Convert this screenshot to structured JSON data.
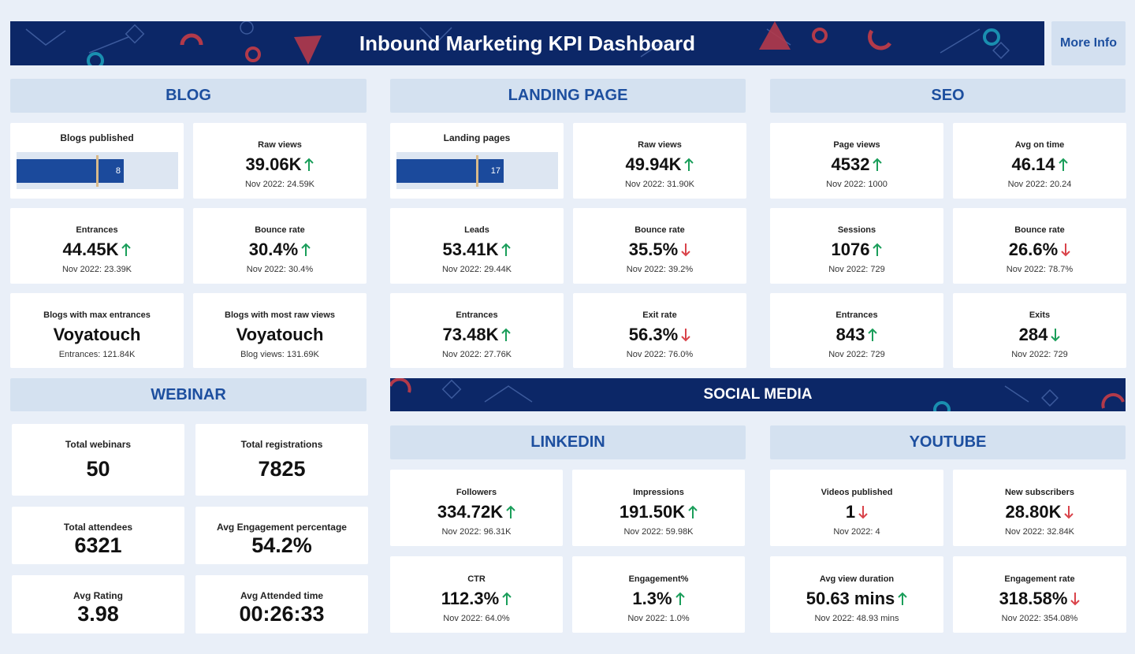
{
  "header": {
    "title": "Inbound Marketing KPI Dashboard",
    "button": "More Info"
  },
  "social_media": {
    "title": "SOCIAL MEDIA"
  },
  "arrow_colors": {
    "green": "#1a9e5a",
    "red": "#d9434a"
  },
  "sections": [
    {
      "title": "BLOG",
      "cards": [
        {
          "kind": "bullet",
          "label": "Blogs published",
          "value": "8"
        },
        {
          "kind": "kpi",
          "label": "Raw views",
          "value": "39.06K",
          "trend": "up",
          "trend_color": "green",
          "comparison": "Nov 2022: 24.59K"
        },
        {
          "kind": "kpi",
          "label": "Entrances",
          "value": "44.45K",
          "trend": "up",
          "trend_color": "green",
          "comparison": "Nov 2022: 23.39K"
        },
        {
          "kind": "kpi",
          "label": "Bounce rate",
          "value": "30.4%",
          "trend": "up",
          "trend_color": "green",
          "comparison": "Nov 2022: 30.4%"
        },
        {
          "kind": "kpi",
          "label": "Blogs with max entrances",
          "value": "Voyatouch",
          "comparison": "Entrances: 121.84K"
        },
        {
          "kind": "kpi",
          "label": "Blogs with most raw views",
          "value": "Voyatouch",
          "comparison": "Blog views: 131.69K"
        }
      ]
    },
    {
      "title": "LANDING PAGE",
      "cards": [
        {
          "kind": "bullet",
          "label": "Landing pages",
          "value": "17"
        },
        {
          "kind": "kpi",
          "label": "Raw views",
          "value": "49.94K",
          "trend": "up",
          "trend_color": "green",
          "comparison": "Nov 2022: 31.90K"
        },
        {
          "kind": "kpi",
          "label": "Leads",
          "value": "53.41K",
          "trend": "up",
          "trend_color": "green",
          "comparison": "Nov 2022: 29.44K"
        },
        {
          "kind": "kpi",
          "label": "Bounce rate",
          "value": "35.5%",
          "trend": "down",
          "trend_color": "red",
          "comparison": "Nov 2022: 39.2%"
        },
        {
          "kind": "kpi",
          "label": "Entrances",
          "value": "73.48K",
          "trend": "up",
          "trend_color": "green",
          "comparison": "Nov 2022: 27.76K"
        },
        {
          "kind": "kpi",
          "label": "Exit rate",
          "value": "56.3%",
          "trend": "down",
          "trend_color": "red",
          "comparison": "Nov 2022: 76.0%"
        }
      ]
    },
    {
      "title": "SEO",
      "cards": [
        {
          "kind": "kpi",
          "label": "Page views",
          "value": "4532",
          "trend": "up",
          "trend_color": "green",
          "comparison": "Nov 2022: 1000"
        },
        {
          "kind": "kpi",
          "label": "Avg on time",
          "value": "46.14",
          "trend": "up",
          "trend_color": "green",
          "comparison": "Nov 2022: 20.24"
        },
        {
          "kind": "kpi",
          "label": "Sessions",
          "value": "1076",
          "trend": "up",
          "trend_color": "green",
          "comparison": "Nov 2022: 729"
        },
        {
          "kind": "kpi",
          "label": "Bounce rate",
          "value": "26.6%",
          "trend": "down",
          "trend_color": "red",
          "comparison": "Nov 2022: 78.7%"
        },
        {
          "kind": "kpi",
          "label": "Entrances",
          "value": "843",
          "trend": "up",
          "trend_color": "green",
          "comparison": "Nov 2022: 729"
        },
        {
          "kind": "kpi",
          "label": "Exits",
          "value": "284",
          "trend": "down",
          "trend_color": "green",
          "comparison": "Nov 2022: 729"
        }
      ]
    },
    {
      "title": "WEBINAR",
      "cards": [
        {
          "kind": "big",
          "label": "Total webinars",
          "value": "50"
        },
        {
          "kind": "big",
          "label": "Total registrations",
          "value": "7825"
        },
        {
          "kind": "big",
          "label": "Total attendees",
          "value": "6321"
        },
        {
          "kind": "big",
          "label": "Avg Engagement percentage",
          "value": "54.2%"
        },
        {
          "kind": "big",
          "label": "Avg Rating",
          "value": "3.98"
        },
        {
          "kind": "big",
          "label": "Avg Attended time",
          "value": "00:26:33"
        }
      ]
    },
    {
      "title": "LINKEDIN",
      "cards": [
        {
          "kind": "kpi",
          "label": "Followers",
          "value": "334.72K",
          "trend": "up",
          "trend_color": "green",
          "comparison": "Nov 2022: 96.31K"
        },
        {
          "kind": "kpi",
          "label": "Impressions",
          "value": "191.50K",
          "trend": "up",
          "trend_color": "green",
          "comparison": "Nov 2022: 59.98K"
        },
        {
          "kind": "kpi",
          "label": "CTR",
          "value": "112.3%",
          "trend": "up",
          "trend_color": "green",
          "comparison": "Nov 2022: 64.0%"
        },
        {
          "kind": "kpi",
          "label": "Engagement%",
          "value": "1.3%",
          "trend": "up",
          "trend_color": "green",
          "comparison": "Nov 2022: 1.0%"
        }
      ]
    },
    {
      "title": "YOUTUBE",
      "cards": [
        {
          "kind": "kpi",
          "label": "Videos published",
          "value": "1",
          "trend": "down",
          "trend_color": "red",
          "comparison": "Nov 2022: 4"
        },
        {
          "kind": "kpi",
          "label": "New subscribers",
          "value": "28.80K",
          "trend": "down",
          "trend_color": "red",
          "comparison": "Nov 2022: 32.84K"
        },
        {
          "kind": "kpi",
          "label": "Avg view duration",
          "value": "50.63 mins",
          "trend": "up",
          "trend_color": "green",
          "comparison": "Nov 2022: 48.93 mins"
        },
        {
          "kind": "kpi",
          "label": "Engagement rate",
          "value": "318.58%",
          "trend": "down",
          "trend_color": "red",
          "comparison": "Nov 2022: 354.08%"
        }
      ]
    }
  ]
}
